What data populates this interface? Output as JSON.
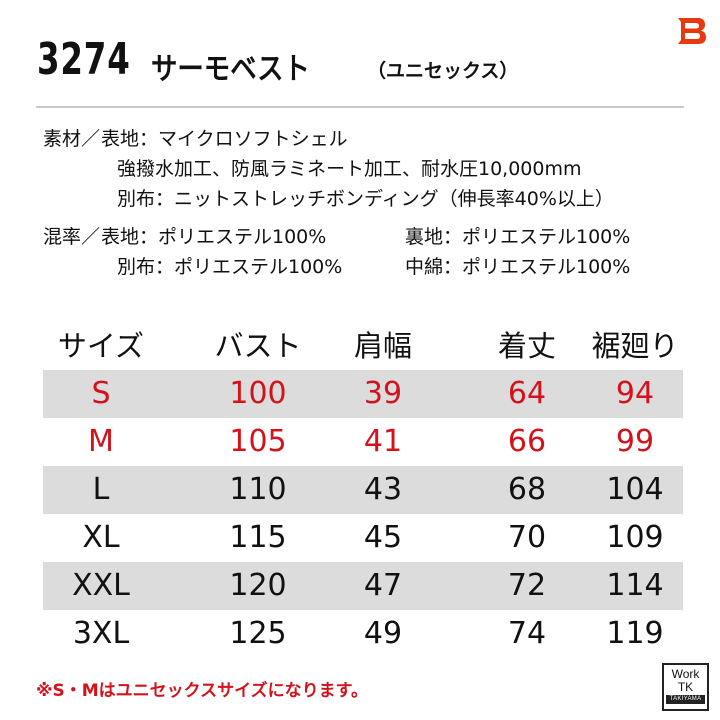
{
  "header": {
    "model_number": "3274",
    "product_name": "サーモベスト",
    "unisex_note": "（ユニセックス）"
  },
  "brand": {
    "logo_icon": "burtle-b-logo-icon",
    "logo_color": "#e8380d"
  },
  "materials": {
    "label_material": "素材／",
    "label_blend": "混率／",
    "lines": [
      {
        "label": "表地",
        "value": "マイクロソフトシェル"
      },
      {
        "label": "",
        "value": "強撥水加工、防風ラミネート加工、耐水圧10,000mm"
      },
      {
        "label": "別布",
        "value": "ニットストレッチボンディング（伸長率40%以上）"
      }
    ],
    "blend": [
      {
        "left_label": "表地",
        "left_value": "ポリエステル100%",
        "right_label": "裏地",
        "right_value": "ポリエステル100%"
      },
      {
        "left_label": "別布",
        "left_value": "ポリエステル100%",
        "right_label": "中綿",
        "right_value": "ポリエステル100%"
      }
    ]
  },
  "size_table": {
    "headers": [
      "サイズ",
      "バスト",
      "肩幅",
      "着丈",
      "裾廻り"
    ],
    "rows": [
      {
        "cells": [
          "S",
          "100",
          "39",
          "64",
          "94"
        ],
        "highlight": true,
        "shaded": true
      },
      {
        "cells": [
          "M",
          "105",
          "41",
          "66",
          "99"
        ],
        "highlight": true,
        "shaded": false
      },
      {
        "cells": [
          "L",
          "110",
          "43",
          "68",
          "104"
        ],
        "highlight": false,
        "shaded": true
      },
      {
        "cells": [
          "XL",
          "115",
          "45",
          "70",
          "109"
        ],
        "highlight": false,
        "shaded": false
      },
      {
        "cells": [
          "XXL",
          "120",
          "47",
          "72",
          "114"
        ],
        "highlight": false,
        "shaded": true
      },
      {
        "cells": [
          "3XL",
          "125",
          "49",
          "74",
          "119"
        ],
        "highlight": false,
        "shaded": false
      }
    ]
  },
  "footnote": "※S・Mはユニセックスサイズになります。",
  "worktk_badge": {
    "line1": "Work",
    "line2": "TK",
    "line3": "TAKIYAMA"
  },
  "colors": {
    "accent_red": "#d4121c",
    "row_shade": "#dcdcdc",
    "divider": "#c9c9c9"
  }
}
